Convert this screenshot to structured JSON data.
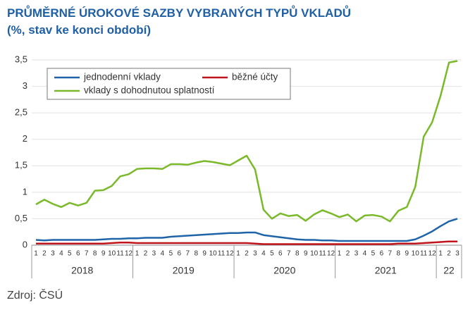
{
  "chart_data": {
    "type": "line",
    "title": "PRŮMĚRNÉ ÚROKOVÉ SAZBY VYBRANÝCH TYPŮ VKLADŮ",
    "subtitle": "(%, stav ke konci období)",
    "source": "Zdroj: ČSÚ",
    "categories": [
      "1",
      "2",
      "3",
      "4",
      "5",
      "6",
      "7",
      "8",
      "9",
      "10",
      "11",
      "12",
      "1",
      "2",
      "3",
      "4",
      "5",
      "6",
      "7",
      "8",
      "9",
      "10",
      "11",
      "12",
      "1",
      "2",
      "3",
      "4",
      "5",
      "6",
      "7",
      "8",
      "9",
      "10",
      "11",
      "12",
      "1",
      "2",
      "3",
      "4",
      "5",
      "6",
      "7",
      "8",
      "9",
      "10",
      "11",
      "12",
      "1",
      "2",
      "3"
    ],
    "year_labels": [
      "2018",
      "2019",
      "2020",
      "2021",
      "22"
    ],
    "series": [
      {
        "name": "jednodenní vklady",
        "color": "#1f64a8",
        "values": [
          0.1,
          0.09,
          0.1,
          0.1,
          0.1,
          0.1,
          0.1,
          0.1,
          0.11,
          0.12,
          0.12,
          0.13,
          0.13,
          0.14,
          0.14,
          0.14,
          0.16,
          0.17,
          0.18,
          0.19,
          0.2,
          0.21,
          0.22,
          0.23,
          0.23,
          0.24,
          0.24,
          0.19,
          0.17,
          0.15,
          0.13,
          0.11,
          0.1,
          0.1,
          0.09,
          0.09,
          0.08,
          0.08,
          0.08,
          0.08,
          0.08,
          0.08,
          0.08,
          0.08,
          0.08,
          0.11,
          0.18,
          0.26,
          0.36,
          0.45,
          0.5
        ]
      },
      {
        "name": "běžné účty",
        "color": "#c0141c",
        "values": [
          0.03,
          0.03,
          0.03,
          0.03,
          0.03,
          0.03,
          0.03,
          0.03,
          0.03,
          0.04,
          0.05,
          0.05,
          0.04,
          0.04,
          0.04,
          0.04,
          0.04,
          0.04,
          0.04,
          0.04,
          0.04,
          0.04,
          0.04,
          0.04,
          0.04,
          0.04,
          0.03,
          0.02,
          0.02,
          0.02,
          0.02,
          0.02,
          0.02,
          0.02,
          0.02,
          0.02,
          0.02,
          0.02,
          0.02,
          0.02,
          0.02,
          0.02,
          0.02,
          0.03,
          0.03,
          0.03,
          0.04,
          0.05,
          0.06,
          0.07,
          0.07
        ]
      },
      {
        "name": "vklady s dohodnutou splatností",
        "color": "#7ab929",
        "values": [
          0.77,
          0.86,
          0.78,
          0.72,
          0.8,
          0.75,
          0.8,
          1.03,
          1.04,
          1.12,
          1.3,
          1.34,
          1.44,
          1.45,
          1.45,
          1.44,
          1.53,
          1.53,
          1.52,
          1.56,
          1.59,
          1.57,
          1.54,
          1.51,
          1.6,
          1.69,
          1.43,
          0.67,
          0.5,
          0.6,
          0.55,
          0.57,
          0.46,
          0.58,
          0.66,
          0.6,
          0.53,
          0.58,
          0.45,
          0.56,
          0.57,
          0.54,
          0.45,
          0.65,
          0.72,
          1.1,
          2.05,
          2.32,
          2.82,
          3.45,
          3.48
        ]
      }
    ],
    "ylim": [
      0,
      3.5
    ],
    "yticks": [
      0,
      {
        "value": 0.5,
        "label": "0,5"
      },
      1,
      {
        "value": 1.5,
        "label": "1,5"
      },
      2,
      {
        "value": 2.5,
        "label": "2,5"
      },
      3,
      {
        "value": 3.5,
        "label": "3,5"
      }
    ],
    "grid": true,
    "legend": "top-left"
  }
}
